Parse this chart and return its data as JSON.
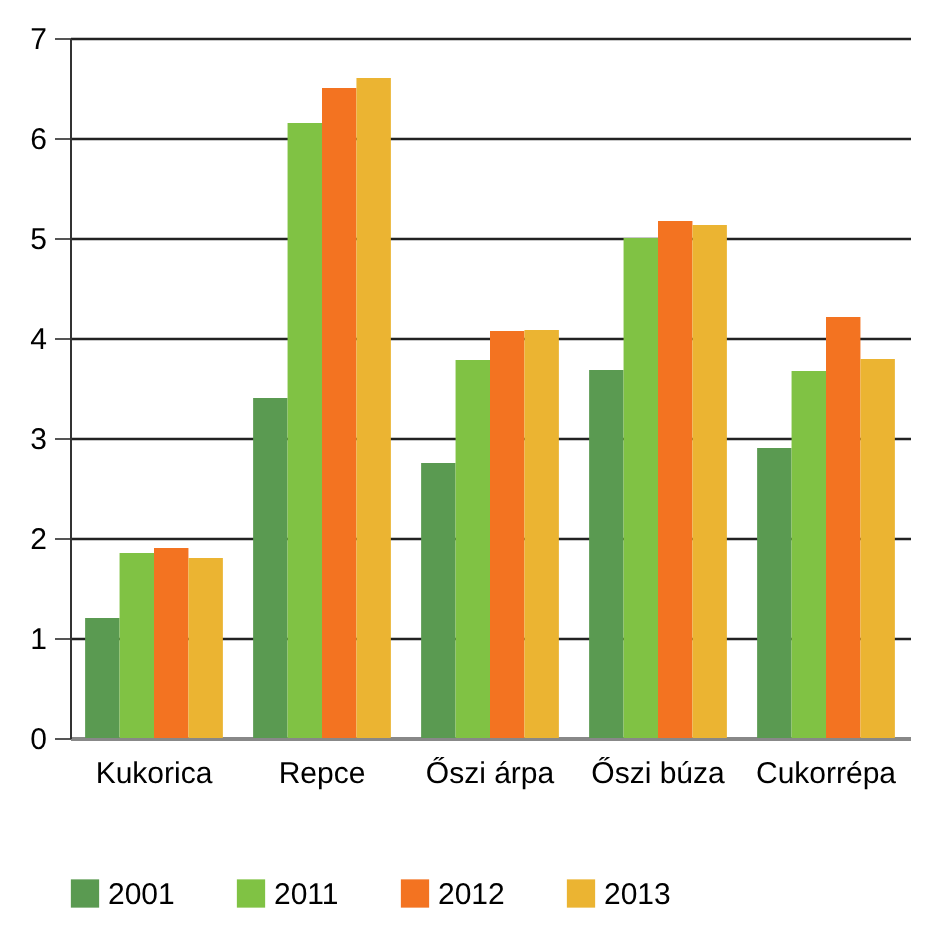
{
  "chart_data": {
    "type": "bar",
    "categories": [
      "Kukorica",
      "Repce",
      "Őszi árpa",
      "Őszi búza",
      "Cukorrépa"
    ],
    "series": [
      {
        "name": "2001",
        "color": "#5a9a51",
        "values": [
          1.2,
          3.4,
          2.75,
          3.68,
          2.9
        ]
      },
      {
        "name": "2011",
        "color": "#80c244",
        "values": [
          1.85,
          6.15,
          3.78,
          5.0,
          3.67
        ]
      },
      {
        "name": "2012",
        "color": "#f37321",
        "values": [
          1.9,
          6.5,
          4.07,
          5.17,
          4.21
        ]
      },
      {
        "name": "2013",
        "color": "#ebb432",
        "values": [
          1.8,
          6.6,
          4.08,
          5.13,
          3.79
        ]
      }
    ],
    "ylim": [
      0,
      7
    ],
    "yticks": [
      0,
      1,
      2,
      3,
      4,
      5,
      6,
      7
    ],
    "grid": "y",
    "legend": "bottom"
  }
}
